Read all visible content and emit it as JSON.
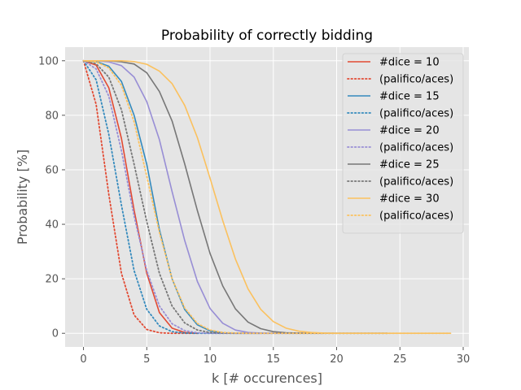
{
  "chart_data": {
    "type": "line",
    "title": "Probability of correctly bidding",
    "xlabel": "k [# occurences]",
    "ylabel": "Probability [%]",
    "xlim": [
      -1.45,
      30.45
    ],
    "ylim": [
      -5,
      105
    ],
    "xticks": [
      0,
      5,
      10,
      15,
      20,
      25,
      30
    ],
    "yticks": [
      0,
      20,
      40,
      60,
      80,
      100
    ],
    "grid": true,
    "legend_position": "top-right",
    "series": [
      {
        "name": "#dice = 10",
        "color": "#E24A33",
        "style": "solid",
        "x": [
          0,
          1,
          2,
          3,
          4,
          5,
          6,
          7,
          8,
          9
        ],
        "y": [
          100,
          98.4,
          90.1,
          71.5,
          45.2,
          22.0,
          7.6,
          1.9,
          0.3,
          0.0
        ]
      },
      {
        "name": "(palifico/aces)",
        "color": "#E24A33",
        "style": "dotted",
        "x": [
          0,
          1,
          2,
          3,
          4,
          5,
          6,
          7,
          8,
          9
        ],
        "y": [
          100,
          84,
          51,
          22,
          6.7,
          1.4,
          0.2,
          0.0,
          0.0,
          0.0
        ]
      },
      {
        "name": "#dice = 15",
        "color": "#348ABD",
        "style": "solid",
        "x": [
          0,
          1,
          2,
          3,
          4,
          5,
          6,
          7,
          8,
          9,
          10,
          11,
          12,
          13,
          14
        ],
        "y": [
          100,
          99.7,
          98.0,
          92.4,
          80.0,
          62.0,
          38.0,
          20.0,
          8.7,
          3.1,
          0.9,
          0.2,
          0.0,
          0.0,
          0.0
        ]
      },
      {
        "name": "(palifico/aces)",
        "color": "#348ABD",
        "style": "dotted",
        "x": [
          0,
          1,
          2,
          3,
          4,
          5,
          6,
          7,
          8,
          9,
          10,
          11,
          12,
          13,
          14
        ],
        "y": [
          100,
          93,
          73,
          47,
          23,
          8.8,
          2.7,
          0.6,
          0.1,
          0.0,
          0.0,
          0.0,
          0.0,
          0.0,
          0.0
        ]
      },
      {
        "name": "#dice = 20",
        "color": "#988ED5",
        "style": "solid",
        "x": [
          0,
          1,
          2,
          3,
          4,
          5,
          6,
          7,
          8,
          9,
          10,
          11,
          12,
          13,
          14,
          15,
          16,
          17,
          18,
          19
        ],
        "y": [
          100,
          100,
          99.6,
          98.2,
          94.0,
          85.0,
          71.0,
          52.0,
          34.0,
          19.0,
          9.1,
          3.7,
          1.2,
          0.3,
          0.1,
          0.0,
          0.0,
          0.0,
          0.0,
          0.0
        ]
      },
      {
        "name": "(palifico/aces)",
        "color": "#988ED5",
        "style": "dotted",
        "x": [
          0,
          1,
          2,
          3,
          4,
          5,
          6,
          7,
          8,
          9,
          10,
          11,
          12,
          13,
          14,
          15,
          16,
          17,
          18,
          19
        ],
        "y": [
          100,
          97,
          87,
          67,
          43,
          23,
          10,
          3.5,
          1.0,
          0.2,
          0.0,
          0.0,
          0.0,
          0.0,
          0.0,
          0.0,
          0.0,
          0.0,
          0.0,
          0.0
        ]
      },
      {
        "name": "#dice = 25",
        "color": "#777777",
        "style": "solid",
        "x": [
          0,
          1,
          2,
          3,
          4,
          5,
          6,
          7,
          8,
          9,
          10,
          11,
          12,
          13,
          14,
          15,
          16,
          17,
          18,
          19,
          20,
          21,
          22,
          23,
          24
        ],
        "y": [
          100,
          100,
          100,
          99.6,
          98.8,
          95.6,
          88.7,
          77.9,
          62.1,
          45.0,
          29.3,
          17.4,
          9.0,
          4.1,
          1.7,
          0.6,
          0.2,
          0.1,
          0.0,
          0.0,
          0.0,
          0.0,
          0.0,
          0.0,
          0.0
        ]
      },
      {
        "name": "(palifico/aces)",
        "color": "#777777",
        "style": "dotted",
        "x": [
          0,
          1,
          2,
          3,
          4,
          5,
          6,
          7,
          8,
          9,
          10,
          11,
          12,
          13,
          14,
          15,
          16,
          17,
          18,
          19,
          20,
          21,
          22,
          23,
          24
        ],
        "y": [
          100,
          98.9,
          94.0,
          82.0,
          62.0,
          41.0,
          22.0,
          10.0,
          3.8,
          1.2,
          0.3,
          0.1,
          0.0,
          0.0,
          0.0,
          0.0,
          0.0,
          0.0,
          0.0,
          0.0,
          0.0,
          0.0,
          0.0,
          0.0,
          0.0
        ]
      },
      {
        "name": "#dice = 30",
        "color": "#FBC15E",
        "style": "solid",
        "x": [
          0,
          1,
          2,
          3,
          4,
          5,
          6,
          7,
          8,
          9,
          10,
          11,
          12,
          13,
          14,
          15,
          16,
          17,
          18,
          19,
          20,
          21,
          22,
          23,
          24,
          25,
          26,
          27,
          28,
          29
        ],
        "y": [
          100,
          100,
          100,
          100,
          99.7,
          98.7,
          96.2,
          91.6,
          83.6,
          71.8,
          56.9,
          41.4,
          27.3,
          16.3,
          8.8,
          4.3,
          1.9,
          0.8,
          0.3,
          0.1,
          0.0,
          0.0,
          0.0,
          0.0,
          0.0,
          0.0,
          0.0,
          0.0,
          0.0,
          0.0
        ]
      },
      {
        "name": "(palifico/aces)",
        "color": "#FBC15E",
        "style": "dotted",
        "x": [
          0,
          1,
          2,
          3,
          4,
          5,
          6,
          7,
          8,
          9,
          10,
          11,
          12,
          13,
          14,
          15,
          16,
          17,
          18,
          19,
          20,
          21,
          22,
          23,
          24,
          25,
          26,
          27,
          28,
          29
        ],
        "y": [
          100,
          99.6,
          97.4,
          91.0,
          77.6,
          57.6,
          37.0,
          20.0,
          9.3,
          3.6,
          1.2,
          0.3,
          0.1,
          0.0,
          0.0,
          0.0,
          0.0,
          0.0,
          0.0,
          0.0,
          0.0,
          0.0,
          0.0,
          0.0,
          0.0,
          0.0,
          0.0,
          0.0,
          0.0,
          0.0
        ]
      }
    ]
  }
}
